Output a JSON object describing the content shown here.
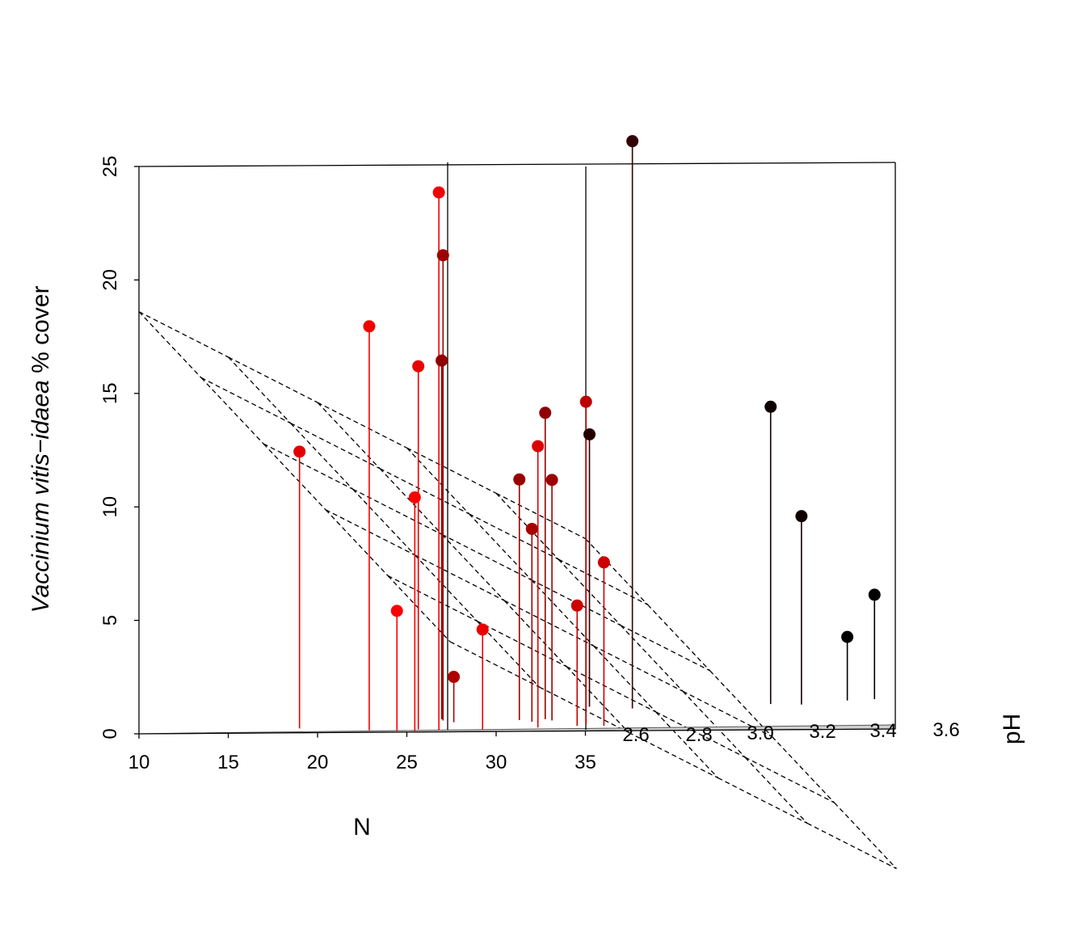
{
  "chart_data": {
    "type": "scatter3d",
    "xlabel": "N",
    "ylabel_italic": "Vaccinium vitis−idaea",
    "ylabel_rest": " % cover",
    "zlabel": "pH",
    "xlim": [
      10,
      35
    ],
    "ylim": [
      0,
      25
    ],
    "x_ticks": [
      "10",
      "15",
      "20",
      "25",
      "30",
      "35"
    ],
    "y_ticks": [
      "0",
      "5",
      "10",
      "15",
      "20",
      "25"
    ],
    "z_ticks": [
      "2.6",
      "2.8",
      "3.0",
      "3.2",
      "3.4",
      "3.6"
    ],
    "grid": false,
    "regression_plane": "dashed",
    "point_color_scale": [
      "#000000",
      "#ff0000"
    ],
    "points": [
      {
        "N": 16.9,
        "pH": 2.72,
        "cover": 12.2
      },
      {
        "N": 21.2,
        "pH": 2.93,
        "cover": 15.8
      },
      {
        "N": 21.5,
        "pH": 2.68,
        "cover": 17.8
      },
      {
        "N": 21.8,
        "pH": 2.9,
        "cover": 20.5
      },
      {
        "N": 23.1,
        "pH": 2.86,
        "cover": 2.0
      },
      {
        "N": 23.4,
        "pH": 2.66,
        "cover": 5.3
      },
      {
        "N": 23.9,
        "pH": 2.7,
        "cover": 16.0
      },
      {
        "N": 24.4,
        "pH": 2.66,
        "cover": 10.3
      },
      {
        "N": 24.6,
        "pH": 3.21,
        "cover": 12.0
      },
      {
        "N": 25.4,
        "pH": 2.68,
        "cover": 23.7
      },
      {
        "N": 25.9,
        "pH": 2.91,
        "cover": 10.6
      },
      {
        "N": 27.0,
        "pH": 2.93,
        "cover": 13.5
      },
      {
        "N": 27.3,
        "pH": 2.87,
        "cover": 8.5
      },
      {
        "N": 27.5,
        "pH": 2.7,
        "cover": 4.4
      },
      {
        "N": 27.7,
        "pH": 3.17,
        "cover": 25.0
      },
      {
        "N": 27.9,
        "pH": 2.9,
        "cover": 10.6
      },
      {
        "N": 29.9,
        "pH": 2.74,
        "cover": 12.4
      },
      {
        "N": 31.2,
        "pH": 2.82,
        "cover": 14.2
      },
      {
        "N": 31.4,
        "pH": 2.78,
        "cover": 5.3
      },
      {
        "N": 32.9,
        "pH": 2.78,
        "cover": 7.2
      },
      {
        "N": 33.7,
        "pH": 3.27,
        "cover": 13.1
      },
      {
        "N": 35.6,
        "pH": 3.26,
        "cover": 8.3
      },
      {
        "N": 36.6,
        "pH": 3.35,
        "cover": 2.8
      },
      {
        "N": 37.6,
        "pH": 3.38,
        "cover": 4.6
      }
    ]
  }
}
